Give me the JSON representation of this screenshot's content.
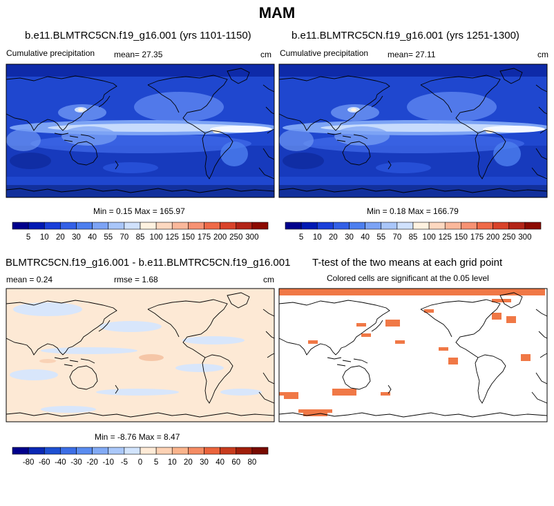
{
  "figure_title": "MAM",
  "chart_data": [
    {
      "type": "heatmap",
      "title": "b.e11.BLMTRC5CN.f19_g16.001 (yrs 1101-1150)",
      "left_label": "Cumulative precipitation",
      "mean_text": "mean=  27.35",
      "units": "cm",
      "minmax_text": "Min =   0.15 Max = 165.97",
      "colorbar_levels": [
        "5",
        "10",
        "20",
        "30",
        "40",
        "55",
        "70",
        "85",
        "100",
        "125",
        "150",
        "175",
        "200",
        "250",
        "300"
      ],
      "colorbar_colors": [
        "#00008c",
        "#0019b3",
        "#1a3fd9",
        "#3360e6",
        "#4d7fef",
        "#7ca3f5",
        "#a9c6fa",
        "#d0e1fd",
        "#fff2e0",
        "#fdd8c0",
        "#fbb89b",
        "#f79273",
        "#ef6a48",
        "#d9432a",
        "#b32417",
        "#8c0a00"
      ]
    },
    {
      "type": "heatmap",
      "title": "b.e11.BLMTRC5CN.f19_g16.001 (yrs 1251-1300)",
      "left_label": "Cumulative precipitation",
      "mean_text": "mean=  27.11",
      "units": "cm",
      "minmax_text": "Min =   0.18 Max = 166.79",
      "colorbar_levels": [
        "5",
        "10",
        "20",
        "30",
        "40",
        "55",
        "70",
        "85",
        "100",
        "125",
        "150",
        "175",
        "200",
        "250",
        "300"
      ],
      "colorbar_colors": [
        "#00008c",
        "#0019b3",
        "#1a3fd9",
        "#3360e6",
        "#4d7fef",
        "#7ca3f5",
        "#a9c6fa",
        "#d0e1fd",
        "#fff2e0",
        "#fdd8c0",
        "#fbb89b",
        "#f79273",
        "#ef6a48",
        "#d9432a",
        "#b32417",
        "#8c0a00"
      ]
    },
    {
      "type": "heatmap",
      "title": "BLMTRC5CN.f19_g16.001 - b.e11.BLMTRC5CN.f19_g16.001",
      "mean_text": "mean =   0.24",
      "rmse_text": "rmse =   1.68",
      "units": "cm",
      "minmax_text": "Min = -8.76 Max =   8.47",
      "colorbar_levels": [
        "-80",
        "-60",
        "-40",
        "-30",
        "-20",
        "-10",
        "-5",
        "0",
        "5",
        "10",
        "20",
        "30",
        "40",
        "60",
        "80"
      ],
      "colorbar_colors": [
        "#00008c",
        "#0a28b4",
        "#1e50d2",
        "#3c6ee6",
        "#5a8cf0",
        "#82aaf5",
        "#aac8fa",
        "#d2e4fd",
        "#ffebd7",
        "#fdd2b4",
        "#fab48c",
        "#f58c64",
        "#eb643c",
        "#c83c1e",
        "#a01e0a",
        "#780a00"
      ]
    },
    {
      "type": "heatmap",
      "title": "T-test of the two means at each grid point",
      "subtitle": "Colored cells are significant at the 0.05 level",
      "significant_color": "#f07846"
    }
  ]
}
